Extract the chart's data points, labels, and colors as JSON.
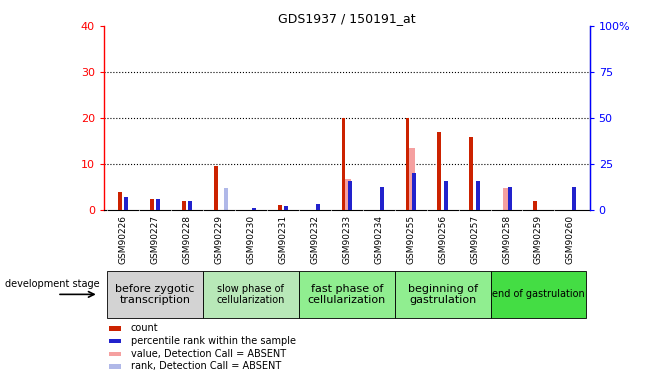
{
  "title": "GDS1937 / 150191_at",
  "samples": [
    "GSM90226",
    "GSM90227",
    "GSM90228",
    "GSM90229",
    "GSM90230",
    "GSM90231",
    "GSM90232",
    "GSM90233",
    "GSM90234",
    "GSM90255",
    "GSM90256",
    "GSM90257",
    "GSM90258",
    "GSM90259",
    "GSM90260"
  ],
  "count_values": [
    4,
    2.5,
    2,
    9.5,
    0,
    1,
    0,
    20,
    0,
    20,
    17,
    16,
    0,
    2,
    0
  ],
  "rank_values": [
    7,
    6,
    5,
    0,
    1,
    2,
    3.5,
    16,
    12.5,
    20,
    16,
    16,
    12.5,
    0,
    12.5
  ],
  "absent_value_values": [
    0,
    0,
    0,
    0,
    0,
    0,
    0,
    17,
    0,
    33.5,
    0,
    0,
    12,
    0,
    0
  ],
  "absent_rank_values": [
    0,
    0,
    0,
    12,
    0,
    0,
    0,
    0,
    0,
    0,
    0,
    0,
    0,
    0,
    0
  ],
  "stage_groups": [
    {
      "label": "before zygotic\ntranscription",
      "start": 0,
      "end": 3,
      "color": "#d3d3d3",
      "label_fontsize": 8
    },
    {
      "label": "slow phase of\ncellularization",
      "start": 3,
      "end": 6,
      "color": "#b8e8b8",
      "label_fontsize": 7
    },
    {
      "label": "fast phase of\ncellularization",
      "start": 6,
      "end": 9,
      "color": "#90ee90",
      "label_fontsize": 8
    },
    {
      "label": "beginning of\ngastrulation",
      "start": 9,
      "end": 12,
      "color": "#90ee90",
      "label_fontsize": 8
    },
    {
      "label": "end of gastrulation",
      "start": 12,
      "end": 15,
      "color": "#44dd44",
      "label_fontsize": 7
    }
  ],
  "ylim_left": [
    0,
    40
  ],
  "ylim_right": [
    0,
    100
  ],
  "yticks_left": [
    0,
    10,
    20,
    30,
    40
  ],
  "yticks_right": [
    0,
    25,
    50,
    75,
    100
  ],
  "count_color": "#cc2200",
  "rank_color": "#2222cc",
  "absent_value_color": "#f5a0a0",
  "absent_rank_color": "#b0b8e8",
  "tick_area_color": "#d3d3d3",
  "legend_items": [
    {
      "color": "#cc2200",
      "label": "count"
    },
    {
      "color": "#2222cc",
      "label": "percentile rank within the sample"
    },
    {
      "color": "#f5a0a0",
      "label": "value, Detection Call = ABSENT"
    },
    {
      "color": "#b0b8e8",
      "label": "rank, Detection Call = ABSENT"
    }
  ]
}
